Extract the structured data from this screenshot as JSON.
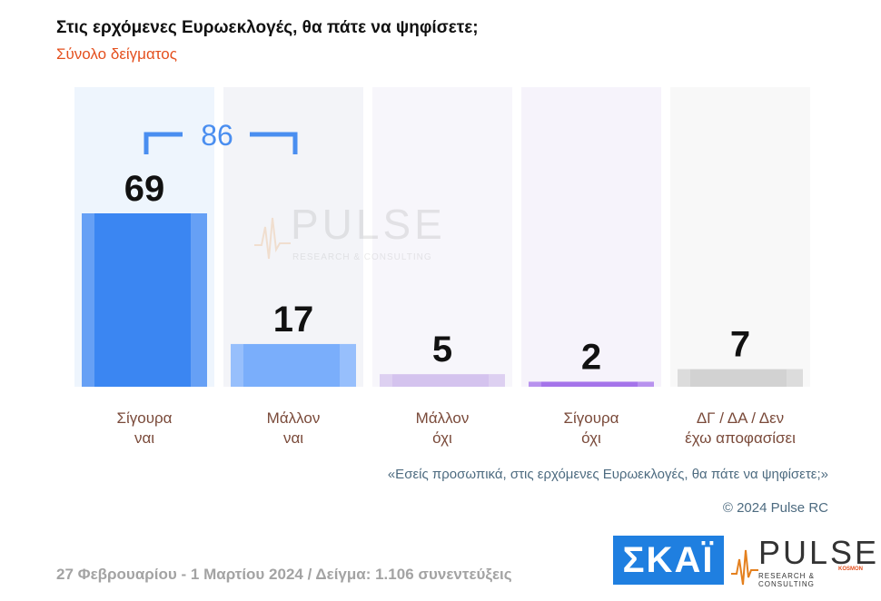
{
  "title": "Στις ερχόμενες Ευρωεκλογές, θα πάτε να ψηφίσετε;",
  "subtitle": "Σύνολο δείγματος",
  "chart_data": {
    "type": "bar",
    "categories": [
      [
        "Σίγουρα",
        "ναι"
      ],
      [
        "Μάλλον",
        "ναι"
      ],
      [
        "Μάλλον",
        "όχι"
      ],
      [
        "Σίγουρα",
        "όχι"
      ],
      [
        "ΔΓ / ΔΑ / Δεν",
        "έχω αποφασίσει"
      ]
    ],
    "values": [
      69,
      17,
      5,
      2,
      7
    ],
    "colors": [
      "#3b86f2",
      "#7aaefb",
      "#d4c3ee",
      "#a574ea",
      "#d2d2d2"
    ],
    "bracket_label": "86",
    "bracket_color": "#4a8ef0",
    "ylim": [
      0,
      69
    ]
  },
  "question": "«Εσείς προσωπικά, στις ερχόμενες Ευρωεκλογές, θα πάτε να ψηφίσετε;»",
  "copyright": "© 2024 Pulse RC",
  "footer": "27 Φεβρουαρίου - 1 Μαρτίου 2024  /  Δείγμα:  1.106 συνεντεύξεις",
  "logos": {
    "skai": "ΣΚΑΪ",
    "pulse": "PULSE",
    "pulse_sub": "RESEARCH & CONSULTING",
    "pulse_kosmon": "KOSMON",
    "watermark": "PULSE",
    "watermark_sub": "RESEARCH & CONSULTING"
  }
}
